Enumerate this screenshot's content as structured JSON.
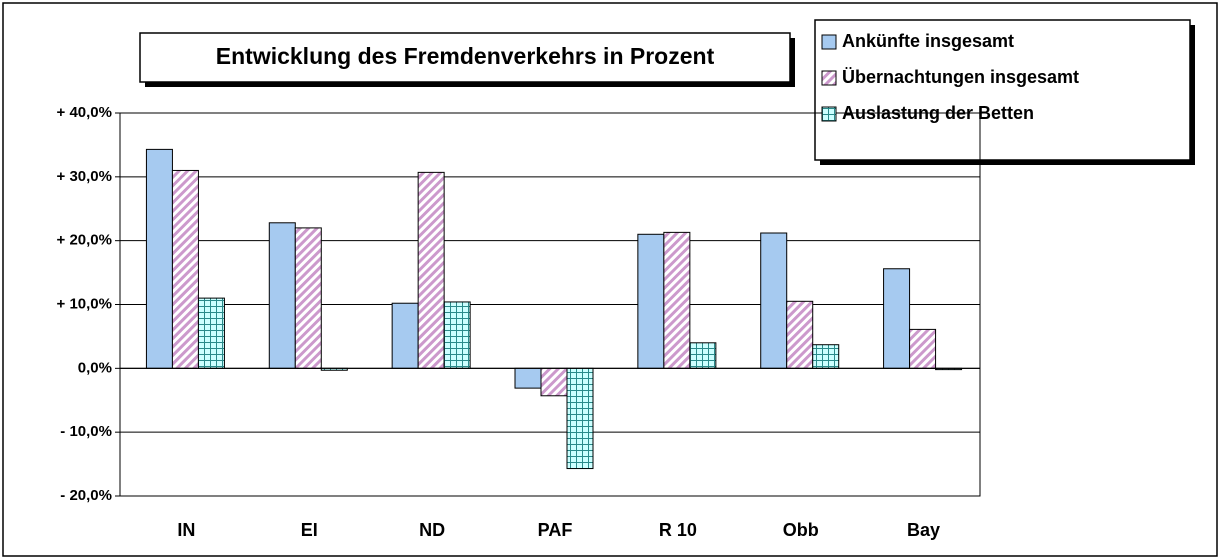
{
  "chart_data": {
    "type": "bar",
    "title": "Entwicklung des Fremdenverkehrs in Prozent",
    "categories": [
      "IN",
      "EI",
      "ND",
      "PAF",
      "R 10",
      "Obb",
      "Bay"
    ],
    "series": [
      {
        "name": "Ankünfte insgesamt",
        "color": "#a6caf0",
        "values": [
          34.3,
          22.8,
          10.2,
          -3.1,
          21.0,
          21.2,
          15.6
        ]
      },
      {
        "name": "Übernachtungen insgesamt",
        "color": "#cc99cc",
        "values": [
          31.0,
          22.0,
          30.7,
          -4.3,
          21.3,
          10.5,
          6.1
        ]
      },
      {
        "name": "Auslastung der Betten",
        "color": "#ccffff",
        "values": [
          11.0,
          -0.3,
          10.4,
          -15.7,
          4.0,
          3.7,
          -0.2
        ]
      }
    ],
    "ylim": [
      -20,
      40
    ],
    "yticks": [
      {
        "value": -20,
        "label": "- 20,0%"
      },
      {
        "value": -10,
        "label": "- 10,0%"
      },
      {
        "value": 0,
        "label": "0,0%"
      },
      {
        "value": 10,
        "label": "+ 10,0%"
      },
      {
        "value": 20,
        "label": "+ 20,0%"
      },
      {
        "value": 30,
        "label": "+ 30,0%"
      },
      {
        "value": 40,
        "label": "+ 40,0%"
      }
    ],
    "grid": true
  }
}
